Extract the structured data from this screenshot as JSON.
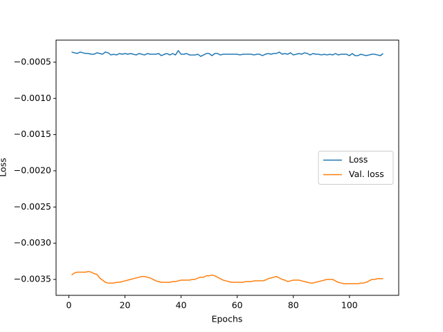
{
  "chart_data": {
    "type": "line",
    "xlabel": "Epochs",
    "ylabel": "Loss",
    "x": [
      1,
      2,
      3,
      4,
      5,
      6,
      7,
      8,
      9,
      10,
      11,
      12,
      13,
      14,
      15,
      16,
      17,
      18,
      19,
      20,
      21,
      22,
      23,
      24,
      25,
      26,
      27,
      28,
      29,
      30,
      31,
      32,
      33,
      34,
      35,
      36,
      37,
      38,
      39,
      40,
      41,
      42,
      43,
      44,
      45,
      46,
      47,
      48,
      49,
      50,
      51,
      52,
      53,
      54,
      55,
      56,
      57,
      58,
      59,
      60,
      61,
      62,
      63,
      64,
      65,
      66,
      67,
      68,
      69,
      70,
      71,
      72,
      73,
      74,
      75,
      76,
      77,
      78,
      79,
      80,
      81,
      82,
      83,
      84,
      85,
      86,
      87,
      88,
      89,
      90,
      91,
      92,
      93,
      94,
      95,
      96,
      97,
      98,
      99,
      100,
      101,
      102,
      103,
      104,
      105,
      106,
      107,
      108,
      109,
      110,
      111,
      112
    ],
    "series": [
      {
        "name": "Loss",
        "color": "#1f77b4",
        "values": [
          -0.00036,
          -0.00037,
          -0.00038,
          -0.00036,
          -0.00037,
          -0.00038,
          -0.00038,
          -0.00039,
          -0.00039,
          -0.00037,
          -0.00038,
          -0.00039,
          -0.00036,
          -0.00037,
          -0.0004,
          -0.00039,
          -0.0004,
          -0.00038,
          -0.00039,
          -0.00038,
          -0.00039,
          -0.00038,
          -0.00039,
          -0.0004,
          -0.00038,
          -0.00039,
          -0.0004,
          -0.00038,
          -0.00039,
          -0.00039,
          -0.00039,
          -0.00038,
          -0.00041,
          -0.00039,
          -0.00038,
          -0.0004,
          -0.00038,
          -0.0004,
          -0.00034,
          -0.00039,
          -0.00039,
          -0.00038,
          -0.0004,
          -0.0004,
          -0.0004,
          -0.00039,
          -0.00042,
          -0.0004,
          -0.00038,
          -0.00038,
          -0.00041,
          -0.00038,
          -0.00038,
          -0.0004,
          -0.00039,
          -0.00039,
          -0.00039,
          -0.00039,
          -0.00039,
          -0.00039,
          -0.0004,
          -0.00039,
          -0.00039,
          -0.00039,
          -0.00039,
          -0.0004,
          -0.00039,
          -0.00039,
          -0.00041,
          -0.00039,
          -0.00038,
          -0.00039,
          -0.00038,
          -0.00038,
          -0.00036,
          -0.00039,
          -0.00038,
          -0.00039,
          -0.00037,
          -0.0004,
          -0.00039,
          -0.00038,
          -0.00039,
          -0.00037,
          -0.00038,
          -0.0004,
          -0.00038,
          -0.00039,
          -0.00039,
          -0.0004,
          -0.00039,
          -0.0004,
          -0.00039,
          -0.0004,
          -0.00038,
          -0.0004,
          -0.00039,
          -0.00039,
          -0.00039,
          -0.00041,
          -0.00038,
          -0.00041,
          -0.00041,
          -0.00039,
          -0.0004,
          -0.00041,
          -0.0004,
          -0.00039,
          -0.00039,
          -0.0004,
          -0.00041,
          -0.00038
        ]
      },
      {
        "name": "Val. loss",
        "color": "#ff7f0e",
        "values": [
          -0.00344,
          -0.00341,
          -0.0034,
          -0.0034,
          -0.0034,
          -0.0034,
          -0.00339,
          -0.0034,
          -0.00342,
          -0.00343,
          -0.00348,
          -0.00351,
          -0.00354,
          -0.00355,
          -0.00355,
          -0.00355,
          -0.00354,
          -0.00354,
          -0.00353,
          -0.00352,
          -0.00351,
          -0.0035,
          -0.00349,
          -0.00348,
          -0.00347,
          -0.00346,
          -0.00346,
          -0.00347,
          -0.00348,
          -0.0035,
          -0.00352,
          -0.00353,
          -0.00354,
          -0.00354,
          -0.00354,
          -0.00354,
          -0.00353,
          -0.00353,
          -0.00352,
          -0.00351,
          -0.00351,
          -0.00351,
          -0.00351,
          -0.0035,
          -0.0035,
          -0.00348,
          -0.00347,
          -0.00347,
          -0.00345,
          -0.00345,
          -0.00344,
          -0.00345,
          -0.00347,
          -0.00349,
          -0.00351,
          -0.00352,
          -0.00353,
          -0.00354,
          -0.00354,
          -0.00354,
          -0.00354,
          -0.00354,
          -0.00353,
          -0.00353,
          -0.00353,
          -0.00352,
          -0.00352,
          -0.00352,
          -0.00352,
          -0.00351,
          -0.00349,
          -0.00348,
          -0.00347,
          -0.00346,
          -0.00348,
          -0.0035,
          -0.00351,
          -0.00353,
          -0.00352,
          -0.00351,
          -0.00351,
          -0.00351,
          -0.00352,
          -0.00353,
          -0.00354,
          -0.00355,
          -0.00355,
          -0.00354,
          -0.00353,
          -0.00352,
          -0.00351,
          -0.0035,
          -0.0035,
          -0.0035,
          -0.00352,
          -0.00354,
          -0.00355,
          -0.00356,
          -0.00356,
          -0.00356,
          -0.00356,
          -0.00356,
          -0.00356,
          -0.00355,
          -0.00355,
          -0.00354,
          -0.00352,
          -0.0035,
          -0.0035,
          -0.00349,
          -0.00349,
          -0.00349
        ]
      }
    ],
    "xlim": [
      -4.55,
      117.55
    ],
    "xticks": [
      0,
      20,
      40,
      60,
      80,
      100
    ],
    "ylim": [
      -0.00372,
      -0.000195
    ],
    "yticks": [
      {
        "value": -0.0035,
        "label": "−0.0035"
      },
      {
        "value": -0.003,
        "label": "−0.0030"
      },
      {
        "value": -0.0025,
        "label": "−0.0025"
      },
      {
        "value": -0.002,
        "label": "−0.0020"
      },
      {
        "value": -0.0015,
        "label": "−0.0015"
      },
      {
        "value": -0.001,
        "label": "−0.0010"
      },
      {
        "value": -0.0005,
        "label": "−0.0005"
      }
    ],
    "legend": "center right",
    "grid": false
  }
}
